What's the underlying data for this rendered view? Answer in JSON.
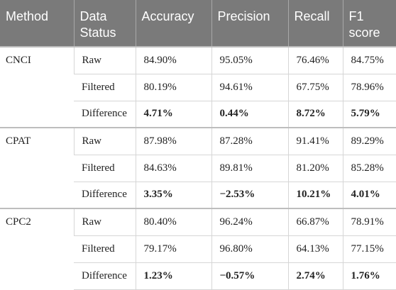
{
  "headers": [
    "Method",
    "Data Status",
    "Accuracy",
    "Precision",
    "Recall",
    "F1 score"
  ],
  "groups": [
    {
      "method": "CNCI",
      "rows": [
        {
          "status": "Raw",
          "values": [
            "84.90%",
            "95.05%",
            "76.46%",
            "84.75%"
          ]
        },
        {
          "status": "Filtered",
          "values": [
            "80.19%",
            "94.61%",
            "67.75%",
            "78.96%"
          ]
        },
        {
          "status": "Difference",
          "values": [
            "4.71%",
            "0.44%",
            "8.72%",
            "5.79%"
          ]
        }
      ]
    },
    {
      "method": "CPAT",
      "rows": [
        {
          "status": "Raw",
          "values": [
            "87.98%",
            "87.28%",
            "91.41%",
            "89.29%"
          ]
        },
        {
          "status": "Filtered",
          "values": [
            "84.63%",
            "89.81%",
            "81.20%",
            "85.28%"
          ]
        },
        {
          "status": "Difference",
          "values": [
            "3.35%",
            "−2.53%",
            "10.21%",
            "4.01%"
          ]
        }
      ]
    },
    {
      "method": "CPC2",
      "rows": [
        {
          "status": "Raw",
          "values": [
            "80.40%",
            "96.24%",
            "66.87%",
            "78.91%"
          ]
        },
        {
          "status": "Filtered",
          "values": [
            "79.17%",
            "96.80%",
            "64.13%",
            "77.15%"
          ]
        },
        {
          "status": "Difference",
          "values": [
            "1.23%",
            "−0.57%",
            "2.74%",
            "1.76%"
          ]
        }
      ]
    }
  ]
}
